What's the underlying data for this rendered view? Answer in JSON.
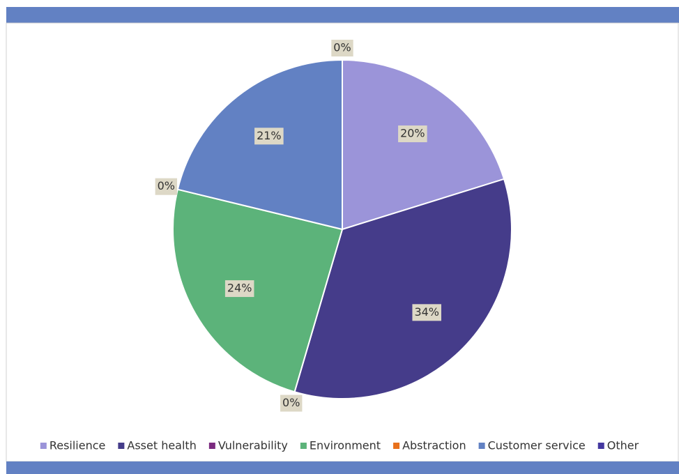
{
  "chart_data": {
    "type": "pie",
    "categories": [
      "Resilience",
      "Asset health",
      "Vulnerability",
      "Environment",
      "Abstraction",
      "Customer service",
      "Other"
    ],
    "values": [
      20,
      34,
      0,
      24,
      0,
      21,
      0
    ],
    "value_labels": [
      "20%",
      "34%",
      "0%",
      "24%",
      "0%",
      "21%",
      "0%"
    ],
    "colors": [
      "#9b94d9",
      "#453c8a",
      "#7b2a7f",
      "#5cb37a",
      "#e8711c",
      "#6281c3",
      "#4438a0"
    ],
    "legend": "bottom"
  }
}
